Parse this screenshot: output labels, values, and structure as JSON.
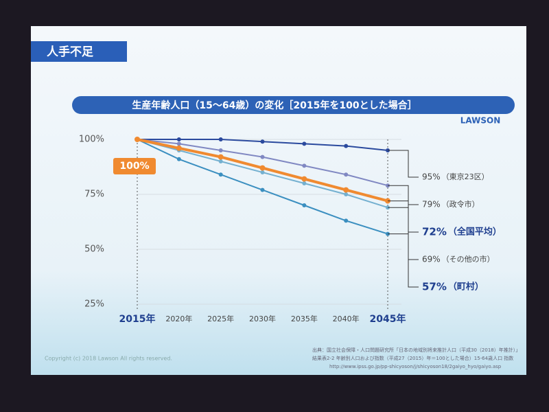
{
  "slide": {
    "header": "人手不足",
    "logo": "LAWSON",
    "copyright": "Copyright (c) 2018 Lawson All rights reserved.",
    "source": [
      "出典：国立社会保障・人口問題研究所「日本の地域別将来推計人口（平成30（2018）年推計）」",
      "結果表2-2 年齢別人口および指数（平成27（2015）年＝100とした場合）15-64歳人口 指数",
      "http://www.ipss.go.jp/pp-shicyoson/j/shicyoson18/2gaiyo_hyo/gaiyo.asp"
    ]
  },
  "chart_data": {
    "type": "line",
    "title": "生産年齢人口（15～64歳）の変化［2015年を100とした場合］",
    "categories": [
      "2015年",
      "2020年",
      "2025年",
      "2030年",
      "2035年",
      "2040年",
      "2045年"
    ],
    "ylim": [
      25,
      100
    ],
    "yticks": [
      {
        "value": 25,
        "label": "25%"
      },
      {
        "value": 50,
        "label": "50%"
      },
      {
        "value": 75,
        "label": "75%"
      },
      {
        "value": 100,
        "label": "100%"
      }
    ],
    "grid": true,
    "series": [
      {
        "name": "（東京23区）",
        "color": "#2b4a9e",
        "values": [
          100,
          100,
          100,
          99,
          98,
          97,
          95
        ],
        "value_labels": [
          null,
          null,
          null,
          null,
          null,
          null,
          "95%"
        ]
      },
      {
        "name": "（政令市）",
        "color": "#8088c2",
        "values": [
          100,
          98,
          95,
          92,
          88,
          84,
          79
        ],
        "value_labels": [
          null,
          null,
          null,
          null,
          null,
          null,
          "79%"
        ]
      },
      {
        "name": "（全国平均）",
        "color": "#f08a30",
        "highlight": true,
        "values": [
          100,
          96,
          92,
          87,
          82,
          77,
          72
        ],
        "value_labels": [
          "100%",
          null,
          null,
          null,
          null,
          null,
          "72%"
        ]
      },
      {
        "name": "（その他の市）",
        "color": "#74b0d0",
        "values": [
          100,
          95,
          90,
          85,
          80,
          75,
          69
        ],
        "value_labels": [
          null,
          null,
          null,
          null,
          null,
          null,
          "69%"
        ]
      },
      {
        "name": "（町村）",
        "color": "#3b8fc0",
        "highlight": true,
        "values": [
          100,
          91,
          84,
          77,
          70,
          63,
          57
        ],
        "value_labels": [
          null,
          null,
          null,
          null,
          null,
          null,
          "57%"
        ]
      }
    ]
  }
}
